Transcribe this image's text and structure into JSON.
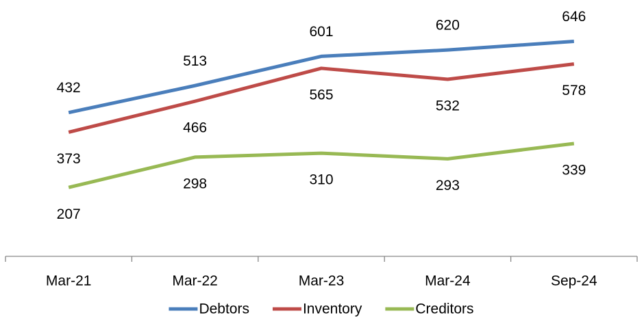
{
  "chart_data": {
    "type": "line",
    "categories": [
      "Mar-21",
      "Mar-22",
      "Mar-23",
      "Mar-24",
      "Sep-24"
    ],
    "series": [
      {
        "name": "Debtors",
        "color": "#4a7ebb",
        "values": [
          432,
          513,
          601,
          620,
          646
        ]
      },
      {
        "name": "Inventory",
        "color": "#be4b48",
        "values": [
          373,
          466,
          565,
          532,
          578
        ]
      },
      {
        "name": "Creditors",
        "color": "#98b954",
        "values": [
          207,
          298,
          310,
          293,
          339
        ]
      }
    ],
    "ylim": [
      0,
      760
    ],
    "legend": "bottom"
  }
}
